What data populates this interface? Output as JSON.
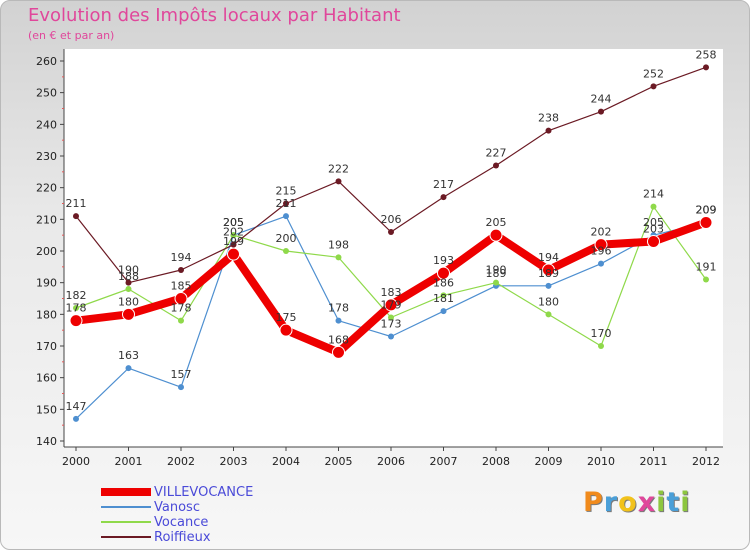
{
  "chart_data": {
    "type": "line",
    "title": "Evolution des Impôts locaux par Habitant",
    "subtitle": "(en € et par an)",
    "xlabel": "",
    "ylabel": "",
    "ylim": [
      140,
      260
    ],
    "yticks": [
      140,
      150,
      160,
      170,
      180,
      190,
      200,
      210,
      220,
      230,
      240,
      250,
      260
    ],
    "categories": [
      "2000",
      "2001",
      "2002",
      "2003",
      "2004",
      "2005",
      "2006",
      "2007",
      "2008",
      "2009",
      "2010",
      "2011",
      "2012"
    ],
    "series": [
      {
        "name": "VILLEVOCANCE",
        "color": "#ee0000",
        "values": [
          178,
          180,
          185,
          199,
          175,
          168,
          183,
          193,
          205,
          194,
          202,
          203,
          209
        ]
      },
      {
        "name": "Vanosc",
        "color": "#4e8fd0",
        "values": [
          147,
          163,
          157,
          205,
          211,
          178,
          173,
          181,
          189,
          189,
          196,
          205,
          209
        ]
      },
      {
        "name": "Vocance",
        "color": "#8fd94a",
        "values": [
          182,
          188,
          178,
          205,
          200,
          198,
          179,
          186,
          190,
          180,
          170,
          214,
          191
        ]
      },
      {
        "name": "Roiffieux",
        "color": "#6b1a24",
        "values": [
          211,
          190,
          194,
          202,
          215,
          222,
          206,
          217,
          227,
          238,
          244,
          252,
          258
        ]
      }
    ],
    "legend": "bottom-left",
    "grid": false
  },
  "logo": {
    "letters": [
      "P",
      "r",
      "o",
      "x",
      "i",
      "t",
      "i"
    ],
    "colors": [
      "#f08a1c",
      "#4a9fd8",
      "#f2c21b",
      "#e0479b",
      "#8dc63f",
      "#4a9fd8",
      "#8dc63f"
    ]
  }
}
